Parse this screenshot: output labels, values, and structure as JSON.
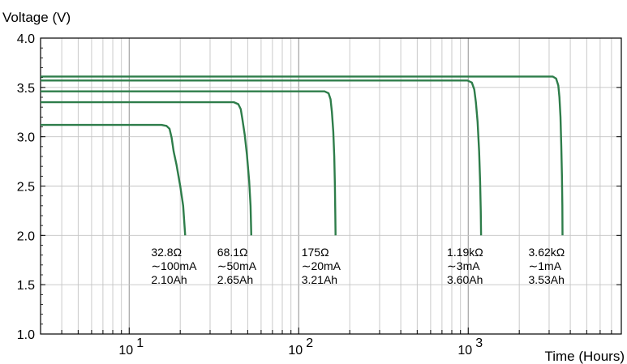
{
  "chart_data": {
    "type": "line",
    "title": "",
    "ylabel": "Voltage (V)",
    "xlabel": "Time (Hours)",
    "xscale": "log",
    "xlim": [
      3,
      8000
    ],
    "ylim": [
      1.0,
      4.0
    ],
    "y_ticks": [
      "1.0",
      "1.5",
      "2.0",
      "2.5",
      "3.0",
      "3.5",
      "4.0"
    ],
    "x_ticks": [
      {
        "base": "10",
        "exp": "1",
        "value": 10
      },
      {
        "base": "10",
        "exp": "2",
        "value": 100
      },
      {
        "base": "10",
        "exp": "3",
        "value": 1000
      }
    ],
    "grid": true,
    "series": [
      {
        "color": "#2e7d4a",
        "label": [
          "32.8Ω",
          "~100mA",
          "2.10Ah"
        ],
        "points": [
          [
            3,
            3.12
          ],
          [
            15.5,
            3.12
          ],
          [
            16.6,
            3.11
          ],
          [
            17.3,
            3.08
          ],
          [
            17.8,
            2.99
          ],
          [
            18.3,
            2.85
          ],
          [
            19.0,
            2.72
          ],
          [
            20.0,
            2.5
          ],
          [
            20.8,
            2.3
          ],
          [
            21.4,
            2.0
          ]
        ]
      },
      {
        "color": "#2e7d4a",
        "label": [
          "68.1Ω",
          "~50mA",
          "2.65Ah"
        ],
        "points": [
          [
            3,
            3.35
          ],
          [
            41.5,
            3.35
          ],
          [
            44.0,
            3.33
          ],
          [
            45.5,
            3.28
          ],
          [
            46.5,
            3.18
          ],
          [
            48.0,
            3.02
          ],
          [
            49.5,
            2.82
          ],
          [
            51.0,
            2.55
          ],
          [
            52.0,
            2.3
          ],
          [
            52.5,
            2.0
          ]
        ]
      },
      {
        "color": "#2e7d4a",
        "label": [
          "175Ω",
          "~20mA",
          "3.21Ah"
        ],
        "points": [
          [
            3,
            3.46
          ],
          [
            142,
            3.46
          ],
          [
            150,
            3.44
          ],
          [
            154,
            3.38
          ],
          [
            157,
            3.25
          ],
          [
            160,
            3.05
          ],
          [
            162,
            2.8
          ],
          [
            163.5,
            2.5
          ],
          [
            164.5,
            2.2
          ],
          [
            165,
            2.0
          ]
        ]
      },
      {
        "color": "#2e7d4a",
        "label": [
          "1.19kΩ",
          "~3mA",
          "3.60Ah"
        ],
        "points": [
          [
            3,
            3.57
          ],
          [
            990,
            3.57
          ],
          [
            1050,
            3.55
          ],
          [
            1085,
            3.48
          ],
          [
            1110,
            3.35
          ],
          [
            1135,
            3.15
          ],
          [
            1160,
            2.85
          ],
          [
            1175,
            2.55
          ],
          [
            1185,
            2.25
          ],
          [
            1190,
            2.0
          ]
        ]
      },
      {
        "color": "#2e7d4a",
        "label": [
          "3.62kΩ",
          "~1mA",
          "3.53Ah"
        ],
        "points": [
          [
            3,
            3.61
          ],
          [
            3150,
            3.61
          ],
          [
            3300,
            3.59
          ],
          [
            3400,
            3.52
          ],
          [
            3450,
            3.4
          ],
          [
            3500,
            3.2
          ],
          [
            3540,
            2.9
          ],
          [
            3570,
            2.6
          ],
          [
            3590,
            2.3
          ],
          [
            3600,
            2.0
          ]
        ]
      }
    ]
  }
}
